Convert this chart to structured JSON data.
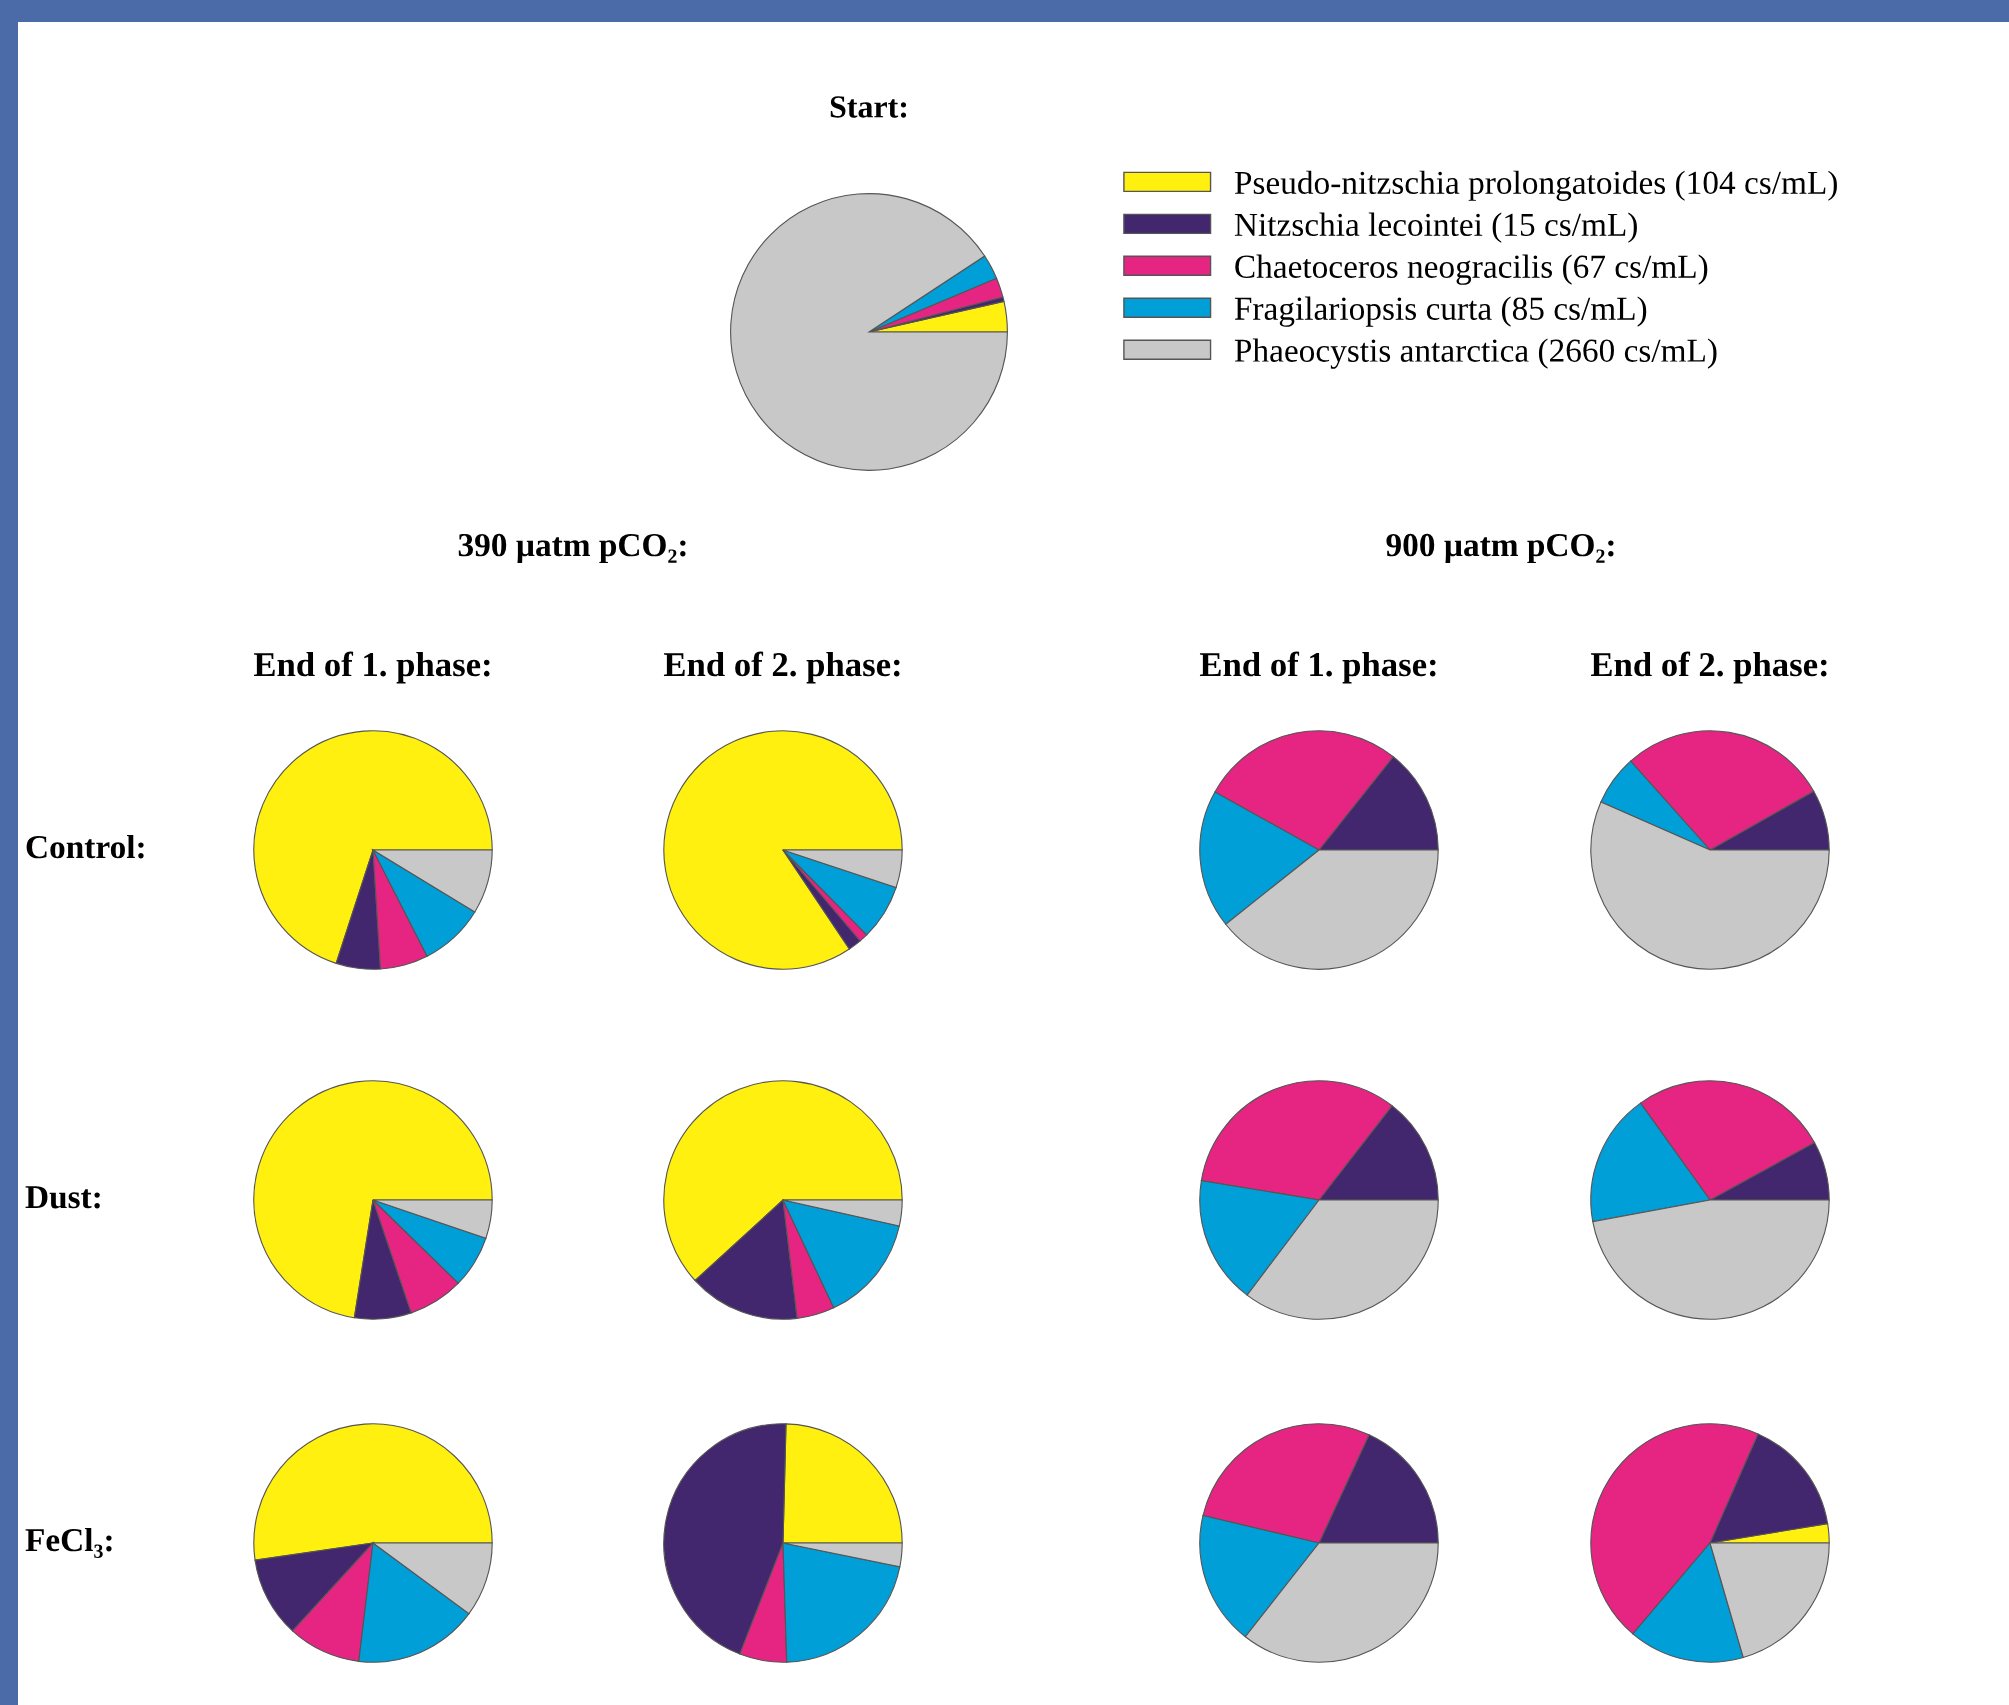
{
  "chart_data": [
    {
      "type": "pie",
      "title": "Start:",
      "categories": [
        "Pseudo-nitzschia prolongatoides",
        "Nitzschia lecointei",
        "Chaetoceros neogracilis",
        "Fragilariopsis curta",
        "Phaeocystis antarctica"
      ],
      "values": [
        104,
        15,
        67,
        85,
        2660
      ],
      "value_labels": [
        "(104 cs/mL)",
        "(15 cs/mL)",
        "(67 cs/mL)",
        "(85 cs/mL)",
        "(2660 cs/mL)"
      ],
      "colors": [
        "#fff00f",
        "#42266e",
        "#e62583",
        "#009fd8",
        "#c8c8c8"
      ],
      "legend": "right"
    },
    {
      "type": "pie",
      "title": "End of 1. phase:",
      "annotations": [
        "390 µatm pCO₂:",
        "Control:"
      ],
      "categories": [
        null,
        null,
        null,
        null,
        null
      ],
      "values": [
        70,
        6,
        6.5,
        8.8,
        8.7
      ],
      "colors": [
        "#fff00f",
        "#42266e",
        "#e62583",
        "#009fd8",
        "#c8c8c8"
      ]
    },
    {
      "type": "pie",
      "title": "End of 2. phase:",
      "categories": [
        null,
        null,
        null,
        null,
        null
      ],
      "values": [
        84.4,
        1.8,
        1.2,
        7.5,
        5.1
      ],
      "colors": [
        "#fff00f",
        "#42266e",
        "#e62583",
        "#009fd8",
        "#c8c8c8"
      ]
    },
    {
      "type": "pie",
      "title": "End of 1. phase:",
      "annotations": [
        "900 µatm pCO₂:"
      ],
      "categories": [
        null,
        null,
        null,
        null,
        null
      ],
      "values": [
        0,
        14.3,
        27.6,
        18.8,
        39.3
      ],
      "colors": [
        "#fff00f",
        "#42266e",
        "#e62583",
        "#009fd8",
        "#c8c8c8"
      ]
    },
    {
      "type": "pie",
      "title": "End of 2. phase:",
      "categories": [
        null,
        null,
        null,
        null,
        null
      ],
      "values": [
        0,
        8.2,
        28.4,
        6.8,
        56.6
      ],
      "colors": [
        "#fff00f",
        "#42266e",
        "#e62583",
        "#009fd8",
        "#c8c8c8"
      ]
    },
    {
      "type": "pie",
      "annotations": [
        "Dust:"
      ],
      "categories": [
        null,
        null,
        null,
        null,
        null
      ],
      "values": [
        72.5,
        7.7,
        7.5,
        7.1,
        5.2
      ],
      "colors": [
        "#fff00f",
        "#42266e",
        "#e62583",
        "#009fd8",
        "#c8c8c8"
      ]
    },
    {
      "type": "pie",
      "categories": [
        null,
        null,
        null,
        null,
        null
      ],
      "values": [
        61.8,
        15.1,
        5.1,
        14.5,
        3.5
      ],
      "colors": [
        "#fff00f",
        "#42266e",
        "#e62583",
        "#009fd8",
        "#c8c8c8"
      ]
    },
    {
      "type": "pie",
      "categories": [
        null,
        null,
        null,
        null,
        null
      ],
      "values": [
        0,
        14.5,
        32.9,
        17.3,
        35.3
      ],
      "colors": [
        "#fff00f",
        "#42266e",
        "#e62583",
        "#009fd8",
        "#c8c8c8"
      ]
    },
    {
      "type": "pie",
      "categories": [
        null,
        null,
        null,
        null,
        null
      ],
      "values": [
        0,
        8.0,
        26.9,
        18.0,
        47.1
      ],
      "colors": [
        "#fff00f",
        "#42266e",
        "#e62583",
        "#009fd8",
        "#c8c8c8"
      ]
    },
    {
      "type": "pie",
      "annotations": [
        "FeCl₃:"
      ],
      "categories": [
        null,
        null,
        null,
        null,
        null
      ],
      "values": [
        52.3,
        10.9,
        9.9,
        16.8,
        10.1
      ],
      "colors": [
        "#fff00f",
        "#42266e",
        "#e62583",
        "#009fd8",
        "#c8c8c8"
      ]
    },
    {
      "type": "pie",
      "categories": [
        null,
        null,
        null,
        null,
        null
      ],
      "values": [
        24.6,
        44.5,
        6.4,
        21.3,
        3.2
      ],
      "colors": [
        "#fff00f",
        "#42266e",
        "#e62583",
        "#009fd8",
        "#c8c8c8"
      ]
    },
    {
      "type": "pie",
      "categories": [
        null,
        null,
        null,
        null,
        null
      ],
      "values": [
        0,
        18.1,
        28.2,
        18.1,
        35.6
      ],
      "colors": [
        "#fff00f",
        "#42266e",
        "#e62583",
        "#009fd8",
        "#c8c8c8"
      ]
    },
    {
      "type": "pie",
      "categories": [
        null,
        null,
        null,
        null,
        null
      ],
      "values": [
        2.6,
        15.8,
        45.4,
        15.7,
        20.5
      ],
      "colors": [
        "#fff00f",
        "#42266e",
        "#e62583",
        "#009fd8",
        "#c8c8c8"
      ]
    }
  ]
}
